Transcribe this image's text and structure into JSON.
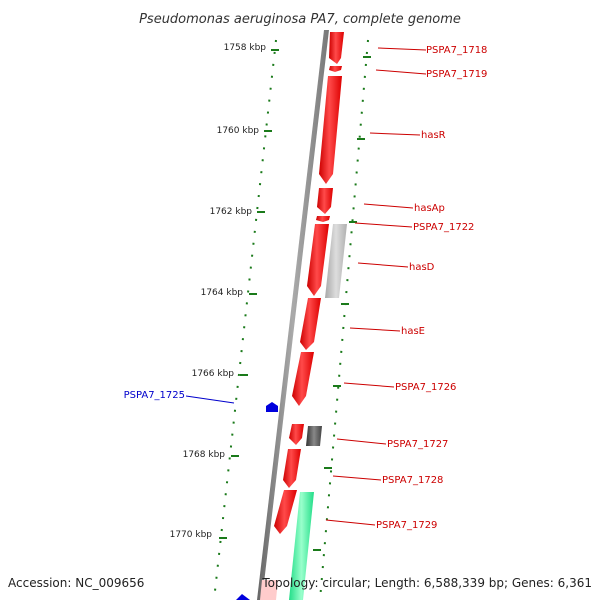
{
  "title": "Pseudomonas aeruginosa PA7, complete genome",
  "footer": {
    "accession": "Accession: NC_009656",
    "topology": "Topology: circular; Length: 6,588,339 bp; Genes: 6,361"
  },
  "colors": {
    "forward_gene": "#ff0000",
    "reverse_gene": "#0000cc",
    "rna_gene": "#33ff99",
    "pseudo_gene": "#bbbbbb",
    "dark_gene": "#555555",
    "backbone": "#888888",
    "tick": "#1a7a1a",
    "forward_label": "#cc0000",
    "reverse_label": "#0000cc"
  },
  "map": {
    "kbp_ticks": [
      {
        "label": "1758 kbp"
      },
      {
        "label": "1760 kbp"
      },
      {
        "label": "1762 kbp"
      },
      {
        "label": "1764 kbp"
      },
      {
        "label": "1766 kbp"
      },
      {
        "label": "1768 kbp"
      },
      {
        "label": "1770 kbp"
      }
    ],
    "genes": [
      {
        "label": "PSPA7_1718",
        "strand": "forward"
      },
      {
        "label": "PSPA7_1719",
        "strand": "forward"
      },
      {
        "label": "hasR",
        "strand": "forward"
      },
      {
        "label": "hasAp",
        "strand": "forward"
      },
      {
        "label": "PSPA7_1722",
        "strand": "forward"
      },
      {
        "label": "hasD",
        "strand": "forward"
      },
      {
        "label": "hasE",
        "strand": "forward"
      },
      {
        "label": "PSPA7_1726",
        "strand": "forward"
      },
      {
        "label": "PSPA7_1725",
        "strand": "reverse"
      },
      {
        "label": "PSPA7_1727",
        "strand": "forward"
      },
      {
        "label": "PSPA7_1728",
        "strand": "forward"
      },
      {
        "label": "PSPA7_1729",
        "strand": "forward"
      }
    ]
  }
}
